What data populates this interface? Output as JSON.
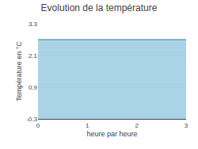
{
  "chart_data": {
    "type": "area",
    "title": "Evolution de la température",
    "x_label": "heure par heure",
    "y_label": "Température en °C",
    "x": [
      0,
      3
    ],
    "values": [
      2.7,
      2.7
    ],
    "color": "#55aacc",
    "xlim": [
      0,
      3
    ],
    "xticks": [
      0,
      1,
      2,
      3
    ],
    "ylim": [
      -0.3,
      3.3
    ],
    "yticks": [
      -0.3,
      0.9,
      2.1,
      3.3
    ],
    "grid": true
  }
}
